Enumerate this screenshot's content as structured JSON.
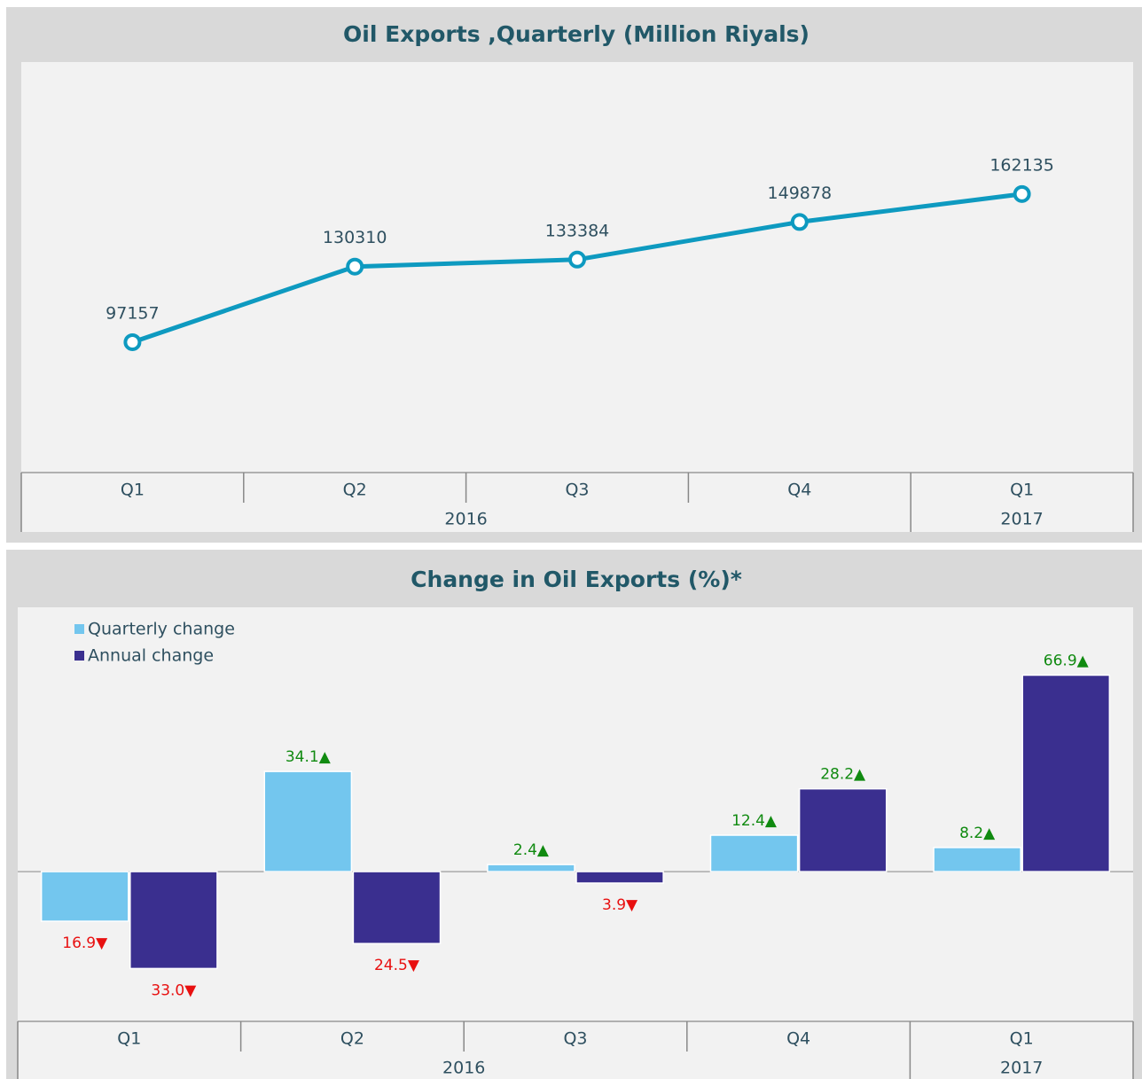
{
  "chart_data": [
    {
      "type": "line",
      "title": "Oil Exports ,Quarterly (Million Riyals)",
      "categories": [
        "Q1",
        "Q2",
        "Q3",
        "Q4",
        "Q1"
      ],
      "groups": [
        {
          "label": "2016",
          "span": 4
        },
        {
          "label": "2017",
          "span": 1
        }
      ],
      "values": [
        97157,
        130310,
        133384,
        149878,
        162135
      ],
      "color": "#0e9ac0",
      "ylim": [
        40000,
        220000
      ]
    },
    {
      "type": "bar",
      "title": "Change in Oil Exports (%)*",
      "categories": [
        "Q1",
        "Q2",
        "Q3",
        "Q4",
        "Q1"
      ],
      "groups": [
        {
          "label": "2016",
          "span": 4
        },
        {
          "label": "2017",
          "span": 1
        }
      ],
      "series": [
        {
          "name": "Quarterly change",
          "color": "#73c6ee",
          "values": [
            -16.9,
            34.1,
            2.4,
            12.4,
            8.2
          ],
          "value_labels": [
            "16.9▼",
            "34.1▲",
            "2.4▲",
            "12.4▲",
            "8.2▲"
          ]
        },
        {
          "name": "Annual change",
          "color": "#3a2f8f",
          "values": [
            -33.0,
            -24.5,
            -3.9,
            28.2,
            66.9
          ],
          "value_labels": [
            "33.0▼",
            "24.5▼",
            "3.9▼",
            "28.2▲",
            "66.9▲"
          ]
        }
      ],
      "up_color": "#108a10",
      "down_color": "#e81010",
      "ylim": [
        -51,
        90
      ],
      "legend": "top-left"
    }
  ]
}
